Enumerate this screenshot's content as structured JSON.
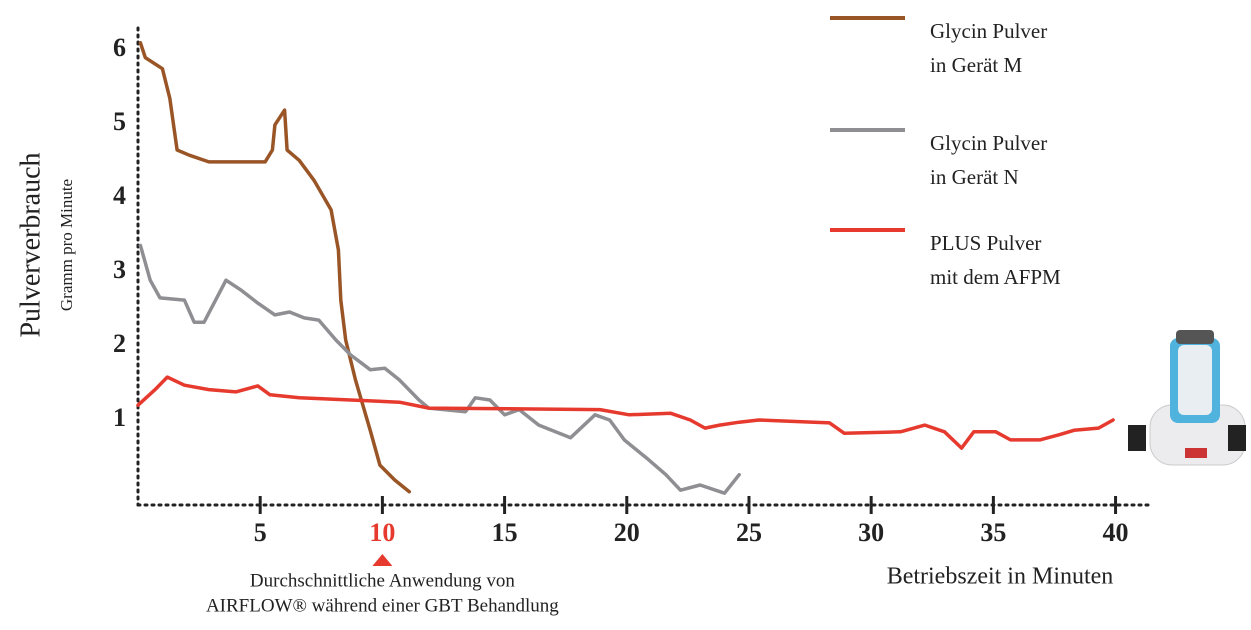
{
  "chart_data": {
    "type": "line",
    "y_label": "Pulververbrauch",
    "y_sublabel": "Gramm pro Minute",
    "x_label": "Betriebszeit in Minuten",
    "xlim": [
      0,
      41
    ],
    "ylim": [
      -0.15,
      6.3
    ],
    "xticks": [
      5,
      10,
      15,
      20,
      25,
      30,
      35,
      40
    ],
    "yticks": [
      1,
      2,
      3,
      4,
      5,
      6
    ],
    "highlight_color": "#e63a2e",
    "annotation": {
      "x": 10,
      "lines": [
        "Durchschnittliche Anwendung von",
        "AIRFLOW® während einer GBT Behandlung"
      ]
    },
    "series": [
      {
        "name": [
          "Glycin Pulver",
          "in Gerät M"
        ],
        "color": "#9a5527",
        "x": [
          0.1,
          0.3,
          1,
          1.3,
          1.6,
          2.1,
          2.9,
          5.2,
          5.5,
          5.6,
          6,
          6.1,
          6.6,
          7.2,
          7.9,
          8.2,
          8.3,
          8.5,
          8.9,
          9.5,
          9.9,
          10.5,
          11.1
        ],
        "values": [
          6.1,
          5.9,
          5.75,
          5.35,
          4.65,
          4.58,
          4.49,
          4.49,
          4.65,
          4.99,
          5.19,
          4.65,
          4.51,
          4.24,
          3.84,
          3.3,
          2.62,
          2.08,
          1.54,
          0.86,
          0.39,
          0.19,
          0.03
        ]
      },
      {
        "name": [
          "Glycin Pulver",
          "in Gerät N"
        ],
        "color": "#8f8f93",
        "x": [
          0.1,
          0.5,
          0.9,
          1.9,
          2.3,
          2.7,
          3.6,
          4.2,
          4.9,
          5.6,
          6.2,
          6.8,
          7.4,
          8.1,
          8.7,
          9.5,
          10.1,
          10.7,
          11.5,
          11.9,
          13.4,
          13.8,
          14.4,
          15,
          15.6,
          16.4,
          17.7,
          18.7,
          19.3,
          19.9,
          20.9,
          21.6,
          22.2,
          23,
          24,
          24.6
        ],
        "values": [
          3.36,
          2.89,
          2.65,
          2.62,
          2.32,
          2.32,
          2.89,
          2.76,
          2.58,
          2.42,
          2.46,
          2.38,
          2.35,
          2.08,
          1.88,
          1.68,
          1.7,
          1.54,
          1.27,
          1.16,
          1.11,
          1.3,
          1.27,
          1.07,
          1.14,
          0.93,
          0.76,
          1.07,
          1,
          0.73,
          0.46,
          0.26,
          0.05,
          0.12,
          0.01,
          0.26
        ]
      },
      {
        "name": [
          "PLUS Pulver",
          "mit dem AFPM"
        ],
        "color": "#e63a2e",
        "x": [
          0,
          0.7,
          1.2,
          1.9,
          2.9,
          4,
          4.9,
          5.4,
          6.6,
          10.7,
          11.9,
          18.9,
          20.1,
          21.8,
          22.6,
          23.2,
          23.8,
          24.6,
          25.4,
          28.3,
          28.9,
          31.2,
          32.2,
          33,
          33.7,
          34.2,
          35.1,
          35.7,
          36.9,
          37.7,
          38.3,
          39.3,
          39.9
        ],
        "values": [
          1.2,
          1.41,
          1.58,
          1.47,
          1.41,
          1.38,
          1.46,
          1.34,
          1.3,
          1.24,
          1.16,
          1.14,
          1.07,
          1.09,
          1,
          0.89,
          0.93,
          0.97,
          1,
          0.96,
          0.82,
          0.84,
          0.93,
          0.84,
          0.62,
          0.84,
          0.84,
          0.73,
          0.73,
          0.8,
          0.86,
          0.89,
          1
        ]
      }
    ]
  }
}
